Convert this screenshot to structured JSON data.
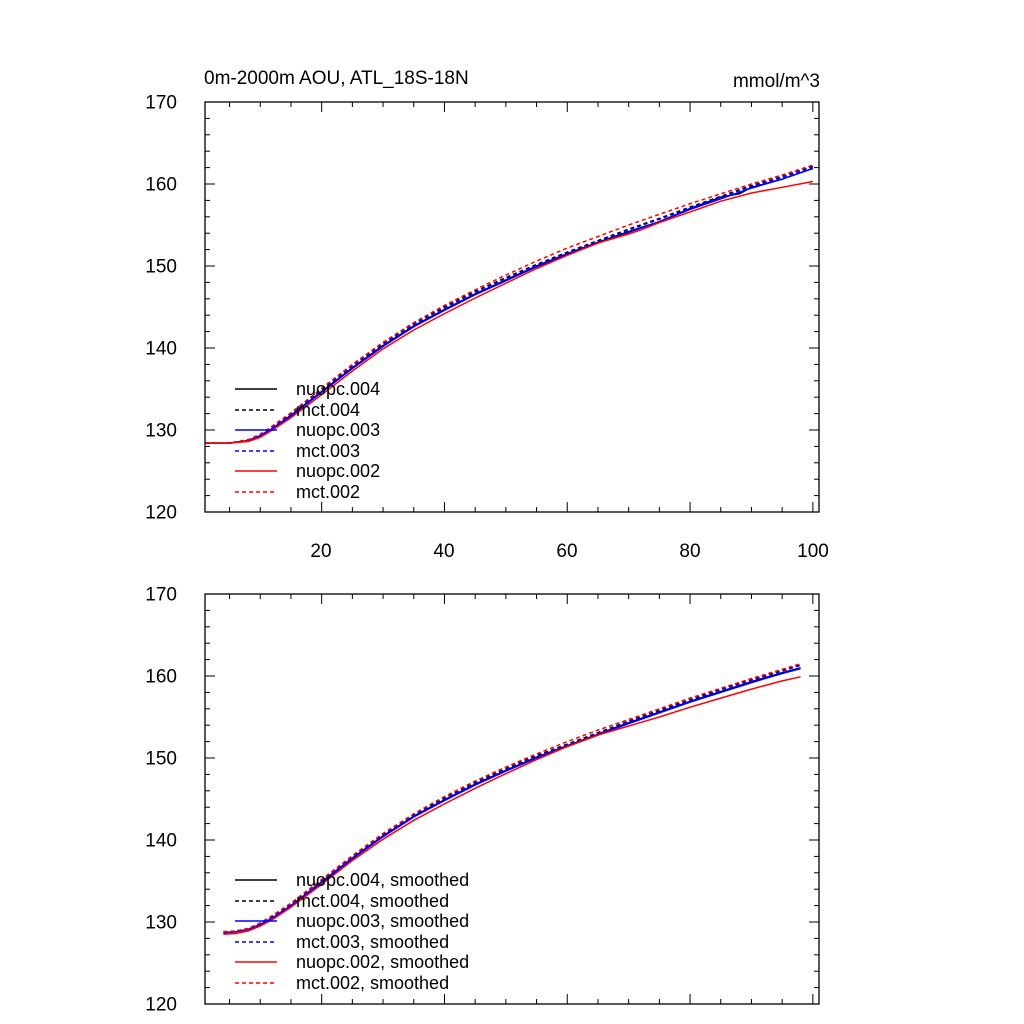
{
  "chart_data": [
    {
      "type": "line",
      "title": "0m-2000m AOU, ATL_18S-18N",
      "units": "mmol/m^3",
      "xlim": [
        1,
        101
      ],
      "ylim": [
        120,
        170
      ],
      "x_ticks": [
        20,
        40,
        60,
        80,
        100
      ],
      "x_tick_labels": [
        "20",
        "40",
        "60",
        "80",
        "100"
      ],
      "y_ticks": [
        120,
        130,
        140,
        150,
        160,
        170
      ],
      "y_tick_labels": [
        "120",
        "130",
        "140",
        "150",
        "160",
        "170"
      ],
      "legend_position": "lower-left",
      "series": [
        {
          "name": "nuopc.004",
          "color": "#000000",
          "dash": "solid",
          "x": [
            1,
            5,
            8,
            10,
            12,
            15,
            20,
            25,
            30,
            35,
            40,
            45,
            50,
            55,
            60,
            65,
            70,
            75,
            80,
            85,
            88,
            90,
            95,
            100
          ],
          "y": [
            128.4,
            128.4,
            128.7,
            129.3,
            130.2,
            131.8,
            134.7,
            137.6,
            140.3,
            142.7,
            144.7,
            146.6,
            148.3,
            150.0,
            151.5,
            152.9,
            154.2,
            155.4,
            157.0,
            158.4,
            158.8,
            159.6,
            160.6,
            161.9
          ]
        },
        {
          "name": "mct.004",
          "color": "#000000",
          "dash": "dashed",
          "x": [
            1,
            5,
            8,
            10,
            12,
            15,
            20,
            25,
            30,
            35,
            40,
            45,
            50,
            55,
            60,
            65,
            70,
            75,
            80,
            85,
            90,
            95,
            100
          ],
          "y": [
            128.4,
            128.4,
            128.8,
            129.4,
            130.4,
            132.0,
            135.0,
            137.9,
            140.6,
            143.0,
            145.0,
            146.9,
            148.6,
            150.2,
            151.7,
            153.1,
            154.5,
            155.8,
            157.2,
            158.5,
            159.8,
            160.9,
            162.2
          ]
        },
        {
          "name": "nuopc.003",
          "color": "#0000ff",
          "dash": "solid",
          "x": [
            1,
            5,
            8,
            10,
            12,
            15,
            20,
            25,
            30,
            35,
            40,
            45,
            50,
            55,
            60,
            65,
            70,
            75,
            80,
            85,
            90,
            95,
            100
          ],
          "y": [
            128.4,
            128.4,
            128.7,
            129.3,
            130.2,
            131.7,
            134.6,
            137.5,
            140.2,
            142.6,
            144.6,
            146.5,
            148.2,
            149.9,
            151.4,
            152.8,
            154.1,
            155.4,
            156.9,
            158.2,
            159.5,
            160.6,
            161.9
          ]
        },
        {
          "name": "mct.003",
          "color": "#0000ff",
          "dash": "dashed",
          "x": [
            1,
            5,
            8,
            10,
            12,
            15,
            20,
            25,
            30,
            35,
            40,
            45,
            50,
            55,
            60,
            65,
            70,
            75,
            80,
            85,
            90,
            95,
            100
          ],
          "y": [
            128.4,
            128.4,
            128.8,
            129.4,
            130.3,
            131.9,
            134.9,
            137.8,
            140.5,
            142.9,
            144.9,
            146.8,
            148.5,
            150.1,
            151.6,
            153.0,
            154.4,
            155.7,
            157.1,
            158.4,
            159.7,
            160.8,
            162.1
          ]
        },
        {
          "name": "nuopc.002",
          "color": "#ff0000",
          "dash": "solid",
          "x": [
            1,
            5,
            8,
            10,
            12,
            15,
            20,
            25,
            30,
            35,
            40,
            45,
            50,
            55,
            60,
            65,
            70,
            72,
            75,
            80,
            85,
            90,
            95,
            100
          ],
          "y": [
            128.4,
            128.4,
            128.6,
            129.1,
            130.0,
            131.5,
            134.3,
            137.2,
            139.9,
            142.2,
            144.2,
            146.1,
            147.9,
            149.7,
            151.3,
            152.8,
            153.9,
            154.4,
            155.3,
            156.6,
            157.9,
            158.9,
            159.6,
            160.3
          ]
        },
        {
          "name": "mct.002",
          "color": "#ff0000",
          "dash": "dashed",
          "x": [
            1,
            5,
            8,
            10,
            12,
            15,
            20,
            25,
            30,
            35,
            40,
            45,
            50,
            55,
            60,
            65,
            70,
            75,
            80,
            85,
            90,
            95,
            100
          ],
          "y": [
            128.4,
            128.4,
            128.8,
            129.5,
            130.5,
            132.1,
            135.1,
            138.0,
            140.7,
            143.1,
            145.2,
            147.1,
            148.9,
            150.6,
            152.2,
            153.6,
            155.0,
            156.3,
            157.6,
            158.8,
            160.0,
            161.1,
            162.3
          ]
        }
      ]
    },
    {
      "type": "line",
      "xlim": [
        1,
        101
      ],
      "ylim": [
        120,
        170
      ],
      "x_ticks": [
        20,
        40,
        60,
        80,
        100
      ],
      "y_ticks": [
        120,
        130,
        140,
        150,
        160,
        170
      ],
      "y_tick_labels": [
        "120",
        "130",
        "140",
        "150",
        "160",
        "170"
      ],
      "legend_position": "lower-left",
      "series": [
        {
          "name": "nuopc.004, smoothed",
          "color": "#000000",
          "dash": "solid",
          "x": [
            4,
            6,
            8,
            10,
            12,
            15,
            20,
            25,
            30,
            35,
            40,
            45,
            50,
            55,
            60,
            65,
            70,
            75,
            80,
            85,
            90,
            95,
            98
          ],
          "y": [
            128.7,
            128.8,
            129.1,
            129.7,
            130.5,
            132.0,
            134.9,
            137.8,
            140.5,
            142.9,
            144.9,
            146.8,
            148.5,
            150.1,
            151.5,
            152.9,
            154.3,
            155.6,
            156.9,
            158.1,
            159.3,
            160.4,
            161.0
          ]
        },
        {
          "name": "mct.004, smoothed",
          "color": "#000000",
          "dash": "dashed",
          "x": [
            4,
            6,
            8,
            10,
            12,
            15,
            20,
            25,
            30,
            35,
            40,
            45,
            50,
            55,
            60,
            65,
            70,
            75,
            80,
            85,
            90,
            95,
            98
          ],
          "y": [
            128.8,
            128.9,
            129.2,
            129.8,
            130.7,
            132.2,
            135.1,
            138.0,
            140.7,
            143.1,
            145.1,
            147.0,
            148.7,
            150.3,
            151.7,
            153.1,
            154.5,
            155.8,
            157.1,
            158.4,
            159.6,
            160.7,
            161.4
          ]
        },
        {
          "name": "nuopc.003, smoothed",
          "color": "#0000ff",
          "dash": "solid",
          "x": [
            4,
            6,
            8,
            10,
            12,
            15,
            20,
            25,
            30,
            35,
            40,
            45,
            50,
            55,
            60,
            65,
            70,
            75,
            80,
            85,
            90,
            95,
            98
          ],
          "y": [
            128.7,
            128.8,
            129.1,
            129.7,
            130.5,
            132.0,
            134.8,
            137.7,
            140.4,
            142.8,
            144.8,
            146.7,
            148.4,
            150.0,
            151.4,
            152.8,
            154.2,
            155.5,
            156.8,
            158.0,
            159.2,
            160.3,
            160.9
          ]
        },
        {
          "name": "mct.003, smoothed",
          "color": "#0000ff",
          "dash": "dashed",
          "x": [
            4,
            6,
            8,
            10,
            12,
            15,
            20,
            25,
            30,
            35,
            40,
            45,
            50,
            55,
            60,
            65,
            70,
            75,
            80,
            85,
            90,
            95,
            98
          ],
          "y": [
            128.8,
            128.9,
            129.2,
            129.8,
            130.6,
            132.1,
            135.0,
            137.9,
            140.6,
            143.0,
            145.0,
            146.9,
            148.6,
            150.2,
            151.6,
            153.0,
            154.4,
            155.7,
            157.0,
            158.3,
            159.5,
            160.6,
            161.3
          ]
        },
        {
          "name": "nuopc.002, smoothed",
          "color": "#ff0000",
          "dash": "solid",
          "x": [
            4,
            6,
            8,
            10,
            12,
            15,
            20,
            25,
            30,
            35,
            40,
            45,
            50,
            55,
            60,
            65,
            70,
            75,
            80,
            85,
            90,
            95,
            98
          ],
          "y": [
            128.5,
            128.6,
            128.9,
            129.5,
            130.3,
            131.8,
            134.6,
            137.5,
            140.1,
            142.4,
            144.4,
            146.3,
            148.1,
            149.8,
            151.4,
            152.8,
            153.9,
            155.0,
            156.2,
            157.3,
            158.4,
            159.4,
            159.9
          ]
        },
        {
          "name": "mct.002, smoothed",
          "color": "#ff0000",
          "dash": "dashed",
          "x": [
            4,
            6,
            8,
            10,
            12,
            15,
            20,
            25,
            30,
            35,
            40,
            45,
            50,
            55,
            60,
            65,
            70,
            75,
            80,
            85,
            90,
            95,
            98
          ],
          "y": [
            128.8,
            128.9,
            129.2,
            129.9,
            130.8,
            132.3,
            135.2,
            138.1,
            140.8,
            143.2,
            145.3,
            147.2,
            148.9,
            150.5,
            152.0,
            153.4,
            154.7,
            156.0,
            157.3,
            158.5,
            159.7,
            160.8,
            161.5
          ]
        }
      ]
    }
  ]
}
